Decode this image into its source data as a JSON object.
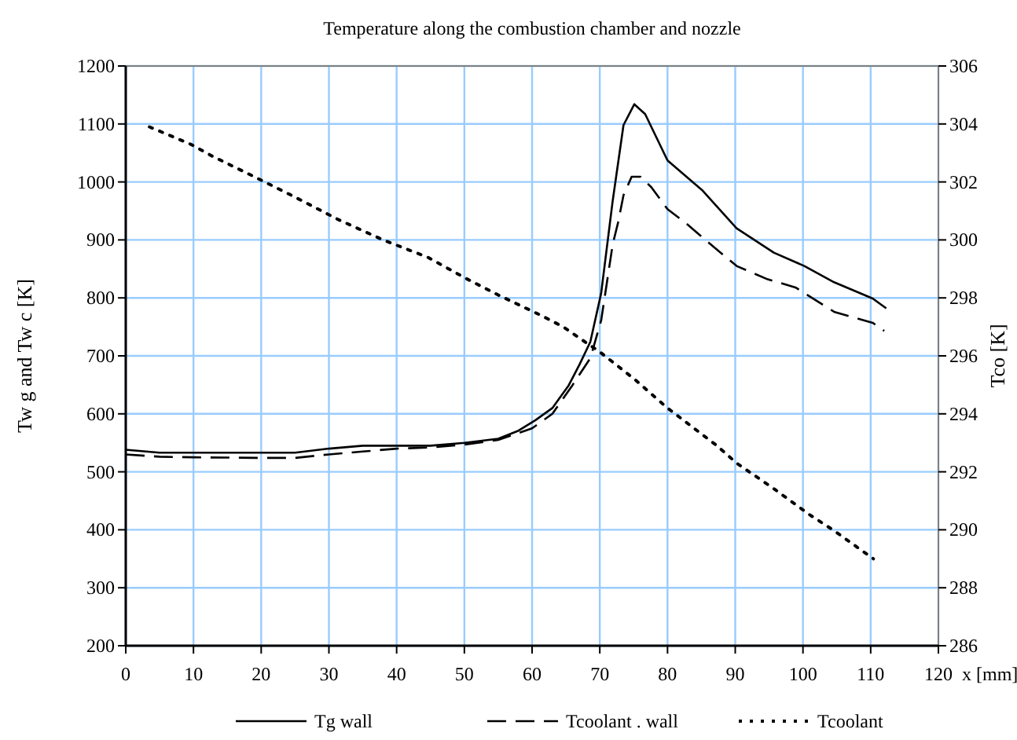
{
  "chart_data": {
    "type": "line",
    "title": "Temperature along the combustion chamber and nozzle",
    "xlabel": "x [mm]",
    "ylabel": "Tw g and Tw c [K]",
    "y2label": "Tco [K]",
    "xlim": [
      0,
      120
    ],
    "xticks": [
      0,
      10,
      20,
      30,
      40,
      50,
      60,
      70,
      80,
      90,
      100,
      110,
      120
    ],
    "ylim": [
      200,
      1200
    ],
    "yticks": [
      200,
      300,
      400,
      500,
      600,
      700,
      800,
      900,
      1000,
      1100,
      1200
    ],
    "y2lim": [
      286,
      306
    ],
    "y2ticks": [
      286,
      288,
      290,
      292,
      294,
      296,
      298,
      300,
      302,
      304,
      306
    ],
    "grid": true,
    "legend": "bottom",
    "series": [
      {
        "name": "Tg wall",
        "color": "#000000",
        "line_style": "solid",
        "x": [
          0,
          5,
          10,
          20,
          25,
          30,
          35,
          40,
          45,
          50,
          55,
          58,
          60.5,
          63,
          65.4,
          67,
          68.6,
          70.2,
          71.9,
          73.5,
          75.1,
          76.7,
          80,
          85.1,
          90.2,
          95.7,
          100.2,
          104.6,
          110.3,
          112.3
        ],
        "values": [
          538,
          533,
          533,
          533,
          533,
          540,
          545,
          545,
          545,
          550,
          557,
          571,
          589,
          610,
          649,
          685,
          724,
          808,
          967,
          1098,
          1134,
          1117,
          1037,
          986,
          920,
          878,
          855,
          827,
          799,
          782
        ]
      },
      {
        "name": "Tcoolant . wall",
        "color": "#000000",
        "line_style": "dashed",
        "x": [
          0,
          5,
          10,
          20,
          25,
          30,
          35,
          40,
          45,
          50,
          55,
          60,
          63,
          66,
          68.6,
          70.2,
          71.9,
          72.7,
          73.5,
          74.7,
          76,
          77.6,
          80,
          82.6,
          85.9,
          90.2,
          94.8,
          98.9,
          104.6,
          110.3,
          112
        ],
        "values": [
          530,
          526,
          525,
          524,
          524,
          530,
          535,
          540,
          542,
          547,
          555,
          575,
          600,
          650,
          696,
          761,
          892,
          930,
          977,
          1009,
          1009,
          991,
          953,
          930,
          897,
          855,
          832,
          818,
          776,
          757,
          743
        ]
      },
      {
        "name": "Tcoolant",
        "color": "#000000",
        "line_style": "dotted",
        "axis": "y2",
        "x": [
          3.5,
          9.6,
          12.7,
          18.8,
          24.8,
          31.4,
          38,
          44.6,
          50,
          55,
          61.3,
          64.6,
          70.2,
          75.1,
          80,
          87.3,
          90.2,
          95.8,
          101.1,
          104.4,
          110.4
        ],
        "values": [
          303.9,
          303.3,
          302.9,
          302.2,
          301.5,
          300.7,
          300,
          299.4,
          298.7,
          298.1,
          297.4,
          297,
          296.1,
          295.2,
          294.2,
          292.9,
          292.3,
          291.4,
          290.5,
          290,
          289
        ]
      }
    ]
  }
}
